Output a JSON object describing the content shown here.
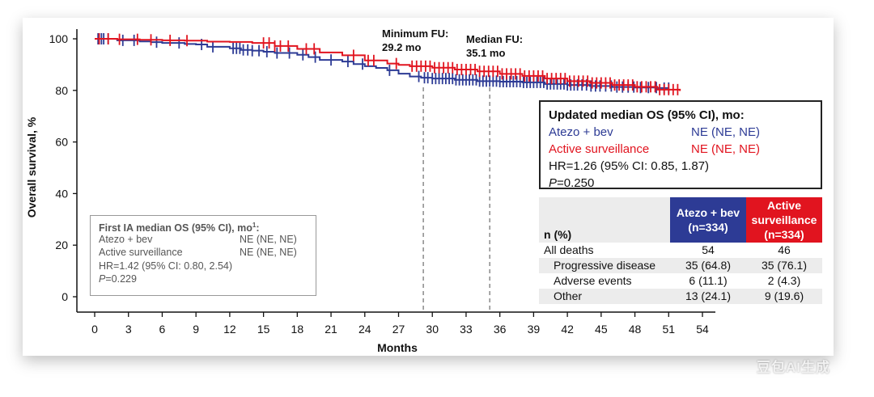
{
  "chart_data": {
    "type": "line",
    "subtype": "kaplan-meier",
    "xlabel": "Months",
    "ylabel": "Overall survival, %",
    "xlim": [
      0,
      54
    ],
    "ylim": [
      0,
      100
    ],
    "xticks": [
      0,
      3,
      6,
      9,
      12,
      15,
      18,
      21,
      24,
      27,
      30,
      33,
      36,
      39,
      42,
      45,
      48,
      51,
      54
    ],
    "yticks": [
      0,
      20,
      40,
      60,
      80,
      100
    ],
    "grid": false,
    "series": [
      {
        "name": "Atezo + bev",
        "color": "#2d3b95",
        "x": [
          0,
          2,
          4,
          5,
          6,
          8,
          9,
          10,
          12,
          13,
          14,
          15,
          16,
          18,
          19,
          20,
          22,
          23,
          24,
          25,
          26,
          27,
          28,
          29,
          30,
          32,
          34,
          36,
          38,
          40,
          42,
          44,
          46,
          48,
          50,
          51
        ],
        "y": [
          100,
          99.4,
          99.0,
          98.7,
          98.4,
          98.0,
          97.8,
          96.9,
          96.3,
          95.7,
          95.4,
          95.0,
          94.5,
          93.8,
          92.9,
          91.8,
          91.2,
          90.2,
          89.4,
          88.7,
          87.8,
          86.5,
          85.4,
          84.9,
          84.6,
          84.1,
          83.6,
          83.4,
          83.1,
          82.5,
          82.1,
          81.7,
          81.3,
          81.1,
          80.9,
          80.9
        ],
        "censor_x": [
          0.3,
          0.6,
          0.8,
          1.2,
          2.5,
          3.5,
          5.5,
          7.5,
          9.5,
          10.5,
          12.3,
          12.6,
          12.9,
          13.2,
          13.6,
          14.0,
          14.6,
          15.3,
          16.2,
          17.3,
          18.5,
          19.6,
          21.0,
          22.5,
          23.8,
          26.2,
          28.8,
          29.3,
          29.6,
          30.0,
          30.3,
          30.6,
          30.9,
          31.2,
          31.5,
          31.8,
          32.1,
          32.4,
          32.7,
          33.0,
          33.3,
          33.6,
          33.9,
          34.2,
          34.5,
          34.8,
          35.1,
          35.4,
          35.7,
          36.0,
          36.3,
          36.6,
          36.9,
          37.2,
          37.5,
          37.8,
          38.1,
          38.4,
          38.7,
          39.0,
          39.3,
          39.6,
          39.9,
          40.2,
          40.5,
          40.8,
          41.1,
          41.4,
          41.7,
          42.0,
          42.3,
          42.6,
          42.9,
          43.3,
          43.7,
          44.1,
          44.5,
          44.9,
          45.4,
          45.9,
          46.4,
          46.9,
          47.4,
          47.9,
          48.5,
          49.2,
          49.9,
          50.6,
          51.0
        ]
      },
      {
        "name": "Active surveillance",
        "color": "#e1141f",
        "x": [
          0,
          2,
          4,
          6,
          8,
          10,
          12,
          14,
          16,
          18,
          20,
          22,
          24,
          26,
          27,
          28,
          30,
          32,
          34,
          36,
          38,
          40,
          42,
          44,
          46,
          48,
          50,
          52
        ],
        "y": [
          100,
          99.8,
          99.6,
          99.4,
          99.3,
          98.9,
          98.8,
          98.4,
          97.2,
          96.1,
          94.7,
          93.6,
          91.6,
          90.4,
          89.9,
          89.4,
          88.8,
          88.1,
          87.4,
          86.4,
          85.6,
          84.6,
          83.6,
          82.9,
          82.1,
          81.4,
          80.3,
          79.8
        ],
        "censor_x": [
          0.4,
          1.2,
          2.2,
          3.8,
          5.0,
          6.7,
          8.2,
          15.0,
          15.5,
          16.0,
          16.5,
          17.2,
          18.8,
          19.5,
          23.0,
          24.3,
          24.8,
          26.8,
          28.2,
          28.6,
          29.0,
          29.4,
          29.8,
          30.2,
          30.6,
          31.0,
          31.4,
          31.8,
          32.2,
          32.6,
          33.0,
          33.4,
          33.8,
          34.2,
          34.6,
          35.0,
          35.4,
          35.8,
          36.2,
          36.6,
          37.0,
          37.4,
          37.8,
          38.2,
          38.6,
          39.0,
          39.4,
          39.8,
          40.2,
          40.6,
          41.0,
          41.4,
          41.8,
          42.2,
          42.6,
          43.0,
          43.4,
          43.8,
          44.2,
          44.6,
          45.0,
          45.4,
          45.8,
          46.2,
          46.6,
          47.0,
          47.4,
          47.8,
          48.2,
          48.6,
          49.0,
          49.4,
          49.8,
          50.2,
          50.6,
          51.0,
          51.4,
          51.8
        ]
      }
    ],
    "reference_lines": [
      {
        "x": 29.2,
        "label_line1": "Minimum FU:",
        "label_line2": "29.2 mo"
      },
      {
        "x": 35.1,
        "label_line1": "Median FU:",
        "label_line2": "35.1 mo"
      }
    ]
  },
  "updated_os": {
    "title": "Updated median OS (95% CI), mo:",
    "arm1_label": "Atezo + bev",
    "arm1_value": "NE (NE, NE)",
    "arm2_label": "Active surveillance",
    "arm2_value": "NE (NE, NE)",
    "hr": "HR=1.26 (95% CI: 0.85, 1.87)",
    "p_italic": "P",
    "p_rest": "=0.250"
  },
  "first_ia": {
    "title": "First IA median OS (95% CI), mo",
    "title_sup": "1",
    "title_colon": ":",
    "arm1_label": "Atezo + bev",
    "arm1_value": "NE (NE, NE)",
    "arm2_label": "Active surveillance",
    "arm2_value": "NE (NE, NE)",
    "hr": "HR=1.42 (95% CI: 0.80, 2.54)",
    "p_italic": "P",
    "p_rest": "=0.229"
  },
  "deaths_table": {
    "row_header": "n (%)",
    "col1_line1": "Atezo + bev",
    "col1_line2": "(n=334)",
    "col2_line1": "Active",
    "col2_line2": "surveillance",
    "col2_line3": "(n=334)",
    "rows": [
      {
        "label": "All deaths",
        "v1": "54",
        "v2": "46"
      },
      {
        "label": "Progressive disease",
        "v1": "35 (64.8)",
        "v2": "35 (76.1)"
      },
      {
        "label": "Adverse events",
        "v1": "6 (11.1)",
        "v2": "2 (4.3)"
      },
      {
        "label": "Other",
        "v1": "13 (24.1)",
        "v2": "9 (19.6)"
      }
    ]
  },
  "watermark": "豆包AI生成"
}
